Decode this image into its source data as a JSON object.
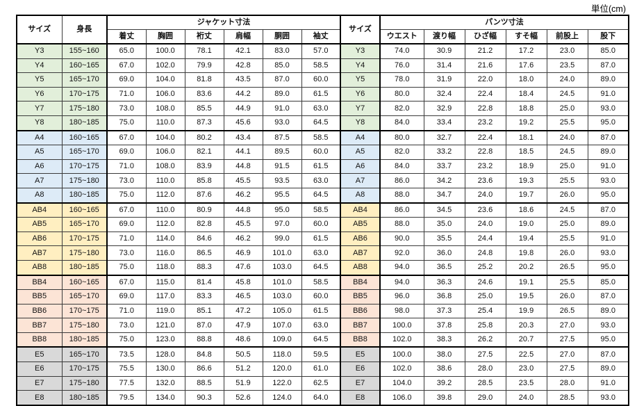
{
  "unit_label": "単位(cm)",
  "chart_data": {
    "type": "table",
    "size_header": "サイズ",
    "height_header": "身長",
    "jacket_section_header": "ジャケット寸法",
    "pants_section_header": "パンツ寸法",
    "jacket_columns": [
      "着丈",
      "胸囲",
      "裄丈",
      "肩幅",
      "胴囲",
      "袖丈"
    ],
    "pants_columns": [
      "ウエスト",
      "渡り幅",
      "ひざ幅",
      "すそ幅",
      "前股上",
      "股下"
    ],
    "groups": [
      {
        "name": "Y",
        "row_color": "#e2efda",
        "rows": [
          {
            "size": "Y3",
            "height": "155~160",
            "jacket": [
              "65.0",
              "100.0",
              "78.1",
              "42.1",
              "83.0",
              "57.0"
            ],
            "pants": [
              "74.0",
              "30.9",
              "21.2",
              "17.2",
              "23.0",
              "85.0"
            ]
          },
          {
            "size": "Y4",
            "height": "160~165",
            "jacket": [
              "67.0",
              "102.0",
              "79.9",
              "42.8",
              "85.0",
              "58.5"
            ],
            "pants": [
              "76.0",
              "31.4",
              "21.6",
              "17.6",
              "23.5",
              "87.0"
            ]
          },
          {
            "size": "Y5",
            "height": "165~170",
            "jacket": [
              "69.0",
              "104.0",
              "81.8",
              "43.5",
              "87.0",
              "60.0"
            ],
            "pants": [
              "78.0",
              "31.9",
              "22.0",
              "18.0",
              "24.0",
              "89.0"
            ]
          },
          {
            "size": "Y6",
            "height": "170~175",
            "jacket": [
              "71.0",
              "106.0",
              "83.6",
              "44.2",
              "89.0",
              "61.5"
            ],
            "pants": [
              "80.0",
              "32.4",
              "22.4",
              "18.4",
              "24.5",
              "91.0"
            ]
          },
          {
            "size": "Y7",
            "height": "175~180",
            "jacket": [
              "73.0",
              "108.0",
              "85.5",
              "44.9",
              "91.0",
              "63.0"
            ],
            "pants": [
              "82.0",
              "32.9",
              "22.8",
              "18.8",
              "25.0",
              "93.0"
            ]
          },
          {
            "size": "Y8",
            "height": "180~185",
            "jacket": [
              "75.0",
              "110.0",
              "87.3",
              "45.6",
              "93.0",
              "64.5"
            ],
            "pants": [
              "84.0",
              "33.4",
              "23.2",
              "19.2",
              "25.5",
              "95.0"
            ]
          }
        ]
      },
      {
        "name": "A",
        "row_color": "#ddebf7",
        "rows": [
          {
            "size": "A4",
            "height": "160~165",
            "jacket": [
              "67.0",
              "104.0",
              "80.2",
              "43.4",
              "87.5",
              "58.5"
            ],
            "pants": [
              "80.0",
              "32.7",
              "22.4",
              "18.1",
              "24.0",
              "87.0"
            ]
          },
          {
            "size": "A5",
            "height": "165~170",
            "jacket": [
              "69.0",
              "106.0",
              "82.1",
              "44.1",
              "89.5",
              "60.0"
            ],
            "pants": [
              "82.0",
              "33.2",
              "22.8",
              "18.5",
              "24.5",
              "89.0"
            ]
          },
          {
            "size": "A6",
            "height": "170~175",
            "jacket": [
              "71.0",
              "108.0",
              "83.9",
              "44.8",
              "91.5",
              "61.5"
            ],
            "pants": [
              "84.0",
              "33.7",
              "23.2",
              "18.9",
              "25.0",
              "91.0"
            ]
          },
          {
            "size": "A7",
            "height": "175~180",
            "jacket": [
              "73.0",
              "110.0",
              "85.8",
              "45.5",
              "93.5",
              "63.0"
            ],
            "pants": [
              "86.0",
              "34.2",
              "23.6",
              "19.3",
              "25.5",
              "93.0"
            ]
          },
          {
            "size": "A8",
            "height": "180~185",
            "jacket": [
              "75.0",
              "112.0",
              "87.6",
              "46.2",
              "95.5",
              "64.5"
            ],
            "pants": [
              "88.0",
              "34.7",
              "24.0",
              "19.7",
              "26.0",
              "95.0"
            ]
          }
        ]
      },
      {
        "name": "AB",
        "row_color": "#ffefc1",
        "rows": [
          {
            "size": "AB4",
            "height": "160~165",
            "jacket": [
              "67.0",
              "110.0",
              "80.9",
              "44.8",
              "95.0",
              "58.5"
            ],
            "pants": [
              "86.0",
              "34.5",
              "23.6",
              "18.6",
              "24.5",
              "87.0"
            ]
          },
          {
            "size": "AB5",
            "height": "165~170",
            "jacket": [
              "69.0",
              "112.0",
              "82.8",
              "45.5",
              "97.0",
              "60.0"
            ],
            "pants": [
              "88.0",
              "35.0",
              "24.0",
              "19.0",
              "25.0",
              "89.0"
            ]
          },
          {
            "size": "AB6",
            "height": "170~175",
            "jacket": [
              "71.0",
              "114.0",
              "84.6",
              "46.2",
              "99.0",
              "61.5"
            ],
            "pants": [
              "90.0",
              "35.5",
              "24.4",
              "19.4",
              "25.5",
              "91.0"
            ]
          },
          {
            "size": "AB7",
            "height": "175~180",
            "jacket": [
              "73.0",
              "116.0",
              "86.5",
              "46.9",
              "101.0",
              "63.0"
            ],
            "pants": [
              "92.0",
              "36.0",
              "24.8",
              "19.8",
              "26.0",
              "93.0"
            ]
          },
          {
            "size": "AB8",
            "height": "180~185",
            "jacket": [
              "75.0",
              "118.0",
              "88.3",
              "47.6",
              "103.0",
              "64.5"
            ],
            "pants": [
              "94.0",
              "36.5",
              "25.2",
              "20.2",
              "26.5",
              "95.0"
            ]
          }
        ]
      },
      {
        "name": "BB",
        "row_color": "#fce4d6",
        "rows": [
          {
            "size": "BB4",
            "height": "160~165",
            "jacket": [
              "67.0",
              "115.0",
              "81.4",
              "45.8",
              "101.0",
              "58.5"
            ],
            "pants": [
              "94.0",
              "36.3",
              "24.6",
              "19.1",
              "25.5",
              "85.0"
            ]
          },
          {
            "size": "BB5",
            "height": "165~170",
            "jacket": [
              "69.0",
              "117.0",
              "83.3",
              "46.5",
              "103.0",
              "60.0"
            ],
            "pants": [
              "96.0",
              "36.8",
              "25.0",
              "19.5",
              "26.0",
              "87.0"
            ]
          },
          {
            "size": "BB6",
            "height": "170~175",
            "jacket": [
              "71.0",
              "119.0",
              "85.1",
              "47.2",
              "105.0",
              "61.5"
            ],
            "pants": [
              "98.0",
              "37.3",
              "25.4",
              "19.9",
              "26.5",
              "89.0"
            ]
          },
          {
            "size": "BB7",
            "height": "175~180",
            "jacket": [
              "73.0",
              "121.0",
              "87.0",
              "47.9",
              "107.0",
              "63.0"
            ],
            "pants": [
              "100.0",
              "37.8",
              "25.8",
              "20.3",
              "27.0",
              "93.0"
            ]
          },
          {
            "size": "BB8",
            "height": "180~185",
            "jacket": [
              "75.0",
              "123.0",
              "88.8",
              "48.6",
              "109.0",
              "64.5"
            ],
            "pants": [
              "102.0",
              "38.3",
              "26.2",
              "20.7",
              "27.5",
              "95.0"
            ]
          }
        ]
      },
      {
        "name": "E",
        "row_color": "#d9d9d9",
        "rows": [
          {
            "size": "E5",
            "height": "165~170",
            "jacket": [
              "73.5",
              "128.0",
              "84.8",
              "50.5",
              "118.0",
              "59.5"
            ],
            "pants": [
              "100.0",
              "38.0",
              "27.5",
              "22.5",
              "27.0",
              "87.0"
            ]
          },
          {
            "size": "E6",
            "height": "170~175",
            "jacket": [
              "75.5",
              "130.0",
              "86.6",
              "51.2",
              "120.0",
              "61.0"
            ],
            "pants": [
              "102.0",
              "38.6",
              "28.0",
              "23.0",
              "27.5",
              "89.0"
            ]
          },
          {
            "size": "E7",
            "height": "175~180",
            "jacket": [
              "77.5",
              "132.0",
              "88.5",
              "51.9",
              "122.0",
              "62.5"
            ],
            "pants": [
              "104.0",
              "39.2",
              "28.5",
              "23.5",
              "28.0",
              "91.0"
            ]
          },
          {
            "size": "E8",
            "height": "180~185",
            "jacket": [
              "79.5",
              "134.0",
              "90.3",
              "52.6",
              "124.0",
              "64.0"
            ],
            "pants": [
              "106.0",
              "39.8",
              "29.0",
              "24.0",
              "28.5",
              "93.0"
            ]
          }
        ]
      }
    ]
  }
}
